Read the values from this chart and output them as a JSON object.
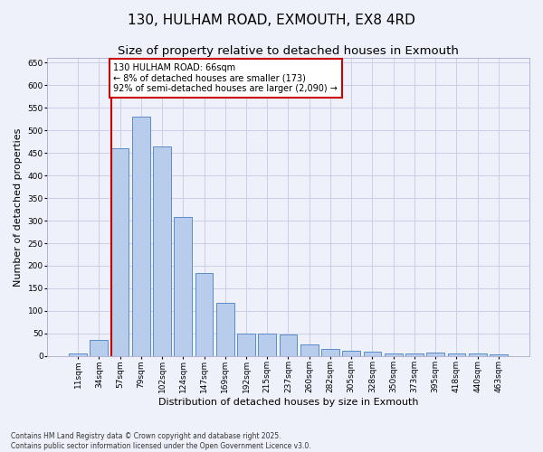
{
  "title": "130, HULHAM ROAD, EXMOUTH, EX8 4RD",
  "subtitle": "Size of property relative to detached houses in Exmouth",
  "xlabel": "Distribution of detached houses by size in Exmouth",
  "ylabel": "Number of detached properties",
  "categories": [
    "11sqm",
    "34sqm",
    "57sqm",
    "79sqm",
    "102sqm",
    "124sqm",
    "147sqm",
    "169sqm",
    "192sqm",
    "215sqm",
    "237sqm",
    "260sqm",
    "282sqm",
    "305sqm",
    "328sqm",
    "350sqm",
    "373sqm",
    "395sqm",
    "418sqm",
    "440sqm",
    "463sqm"
  ],
  "values": [
    5,
    35,
    460,
    530,
    465,
    308,
    183,
    118,
    50,
    50,
    48,
    26,
    16,
    12,
    9,
    5,
    5,
    8,
    5,
    5,
    4
  ],
  "bar_color": "#b8cceb",
  "bar_edge_color": "#5b8cc8",
  "background_color": "#eef1fa",
  "grid_color": "#c8cfe8",
  "ylim": [
    0,
    660
  ],
  "yticks": [
    0,
    50,
    100,
    150,
    200,
    250,
    300,
    350,
    400,
    450,
    500,
    550,
    600,
    650
  ],
  "vline_x_index": 2,
  "vline_color": "#cc0000",
  "annotation_text": "130 HULHAM ROAD: 66sqm\n← 8% of detached houses are smaller (173)\n92% of semi-detached houses are larger (2,090) →",
  "annotation_box_color": "#cc0000",
  "footer_line1": "Contains HM Land Registry data © Crown copyright and database right 2025.",
  "footer_line2": "Contains public sector information licensed under the Open Government Licence v3.0.",
  "title_fontsize": 11,
  "subtitle_fontsize": 9.5,
  "tick_fontsize": 6.5,
  "ylabel_fontsize": 8,
  "xlabel_fontsize": 8,
  "annotation_fontsize": 7,
  "footer_fontsize": 5.5
}
